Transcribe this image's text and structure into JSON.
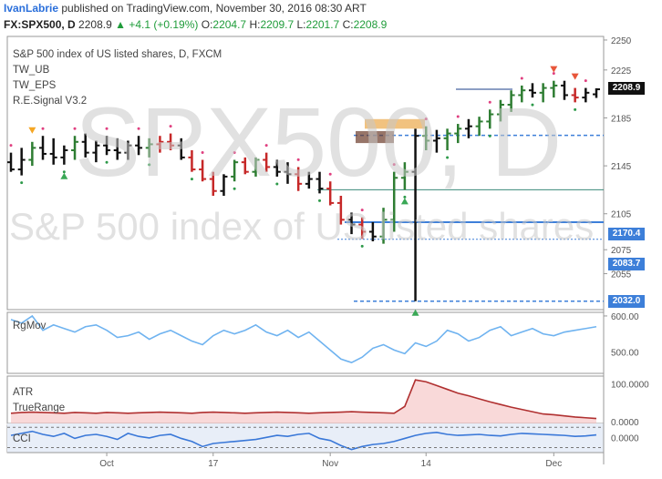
{
  "header": {
    "author": "IvanLabrie",
    "published": "published on TradingView.com, November 30, 2016 08:30 ART",
    "symbol": "FX:SPX500, D",
    "last": "2208.9",
    "change": "+4.1 (+0.19%)",
    "o_label": "O:",
    "o_val": "2204.7",
    "h_label": "H:",
    "h_val": "2209.7",
    "l_label": "L:",
    "l_val": "2201.7",
    "c_label": "C:",
    "c_val": "2208.9"
  },
  "legend": {
    "title": "S&P 500 index of US listed shares, D, FXCM",
    "ind1": "TW_UB",
    "ind2": "TW_EPS",
    "ind3": "R.E.Signal V3.2"
  },
  "watermark": {
    "symbol": "SPX500, D",
    "name": "S&P 500 index of US listed shares"
  },
  "price_tags": {
    "last": "2208.9",
    "l1": "2170.4",
    "l2": "2083.7",
    "l3": "2032.0"
  },
  "colors": {
    "up_bar": "#2e7d32",
    "down_bar": "#c62828",
    "neutral_bar": "#111111",
    "line_blue": "#3d7fd9",
    "rgmov": "#6fb3f0",
    "atr": "#b03030",
    "cci": "#3a78d8"
  },
  "chart_data": [
    {
      "type": "ohlc",
      "title": "S&P 500 index of US listed shares, D, FXCM",
      "y_ticks": [
        2250,
        2225,
        2185,
        2145,
        2105,
        2075,
        2055
      ],
      "x_ticks": [
        "Oct",
        "17",
        "Nov",
        "14",
        "Dec"
      ],
      "ylim": [
        2025,
        2253
      ],
      "bars": [
        [
          2148,
          2156,
          2140,
          2142,
          "n"
        ],
        [
          2142,
          2160,
          2137,
          2150,
          "n"
        ],
        [
          2150,
          2165,
          2145,
          2160,
          "u"
        ],
        [
          2160,
          2170,
          2150,
          2155,
          "n"
        ],
        [
          2155,
          2168,
          2146,
          2152,
          "n"
        ],
        [
          2152,
          2162,
          2146,
          2158,
          "n"
        ],
        [
          2158,
          2170,
          2150,
          2165,
          "u"
        ],
        [
          2165,
          2172,
          2152,
          2156,
          "n"
        ],
        [
          2156,
          2166,
          2148,
          2162,
          "n"
        ],
        [
          2162,
          2170,
          2154,
          2158,
          "n"
        ],
        [
          2158,
          2168,
          2150,
          2156,
          "n"
        ],
        [
          2156,
          2166,
          2150,
          2162,
          "n"
        ],
        [
          2162,
          2170,
          2154,
          2160,
          "n"
        ],
        [
          2160,
          2168,
          2152,
          2163,
          "u"
        ],
        [
          2163,
          2170,
          2156,
          2165,
          "d"
        ],
        [
          2165,
          2172,
          2158,
          2162,
          "d"
        ],
        [
          2162,
          2168,
          2150,
          2152,
          "n"
        ],
        [
          2152,
          2158,
          2140,
          2142,
          "d"
        ],
        [
          2142,
          2150,
          2132,
          2134,
          "d"
        ],
        [
          2134,
          2140,
          2120,
          2124,
          "d"
        ],
        [
          2124,
          2138,
          2120,
          2136,
          "n"
        ],
        [
          2136,
          2150,
          2132,
          2148,
          "u"
        ],
        [
          2148,
          2152,
          2138,
          2140,
          "d"
        ],
        [
          2140,
          2152,
          2136,
          2150,
          "u"
        ],
        [
          2150,
          2156,
          2140,
          2144,
          "d"
        ],
        [
          2144,
          2150,
          2136,
          2140,
          "n"
        ],
        [
          2140,
          2148,
          2130,
          2138,
          "n"
        ],
        [
          2138,
          2144,
          2124,
          2130,
          "d"
        ],
        [
          2130,
          2140,
          2126,
          2134,
          "n"
        ],
        [
          2134,
          2140,
          2122,
          2126,
          "n"
        ],
        [
          2126,
          2132,
          2112,
          2114,
          "d"
        ],
        [
          2114,
          2120,
          2096,
          2100,
          "d"
        ],
        [
          2100,
          2106,
          2088,
          2096,
          "n"
        ],
        [
          2096,
          2102,
          2084,
          2090,
          "d"
        ],
        [
          2090,
          2098,
          2082,
          2086,
          "n"
        ],
        [
          2086,
          2110,
          2080,
          2100,
          "u"
        ],
        [
          2100,
          2140,
          2090,
          2135,
          "u"
        ],
        [
          2135,
          2148,
          2125,
          2140,
          "u"
        ],
        [
          2140,
          2176,
          2032,
          2170,
          "n"
        ],
        [
          2170,
          2178,
          2158,
          2166,
          "u"
        ],
        [
          2166,
          2175,
          2156,
          2168,
          "n"
        ],
        [
          2168,
          2176,
          2158,
          2172,
          "u"
        ],
        [
          2172,
          2180,
          2164,
          2176,
          "u"
        ],
        [
          2176,
          2184,
          2168,
          2178,
          "n"
        ],
        [
          2178,
          2186,
          2170,
          2182,
          "u"
        ],
        [
          2182,
          2192,
          2176,
          2188,
          "u"
        ],
        [
          2188,
          2200,
          2182,
          2196,
          "u"
        ],
        [
          2196,
          2208,
          2190,
          2204,
          "u"
        ],
        [
          2204,
          2212,
          2198,
          2208,
          "u"
        ],
        [
          2208,
          2214,
          2202,
          2206,
          "n"
        ],
        [
          2206,
          2214,
          2198,
          2210,
          "u"
        ],
        [
          2210,
          2216,
          2202,
          2212,
          "u"
        ],
        [
          2212,
          2216,
          2200,
          2204,
          "n"
        ],
        [
          2204,
          2210,
          2198,
          2202,
          "d"
        ],
        [
          2202,
          2210,
          2198,
          2206,
          "n"
        ],
        [
          2204.7,
          2209.7,
          2201.7,
          2208.9,
          "n"
        ]
      ],
      "levels": [
        2170.4,
        2083.7,
        2032.0,
        2208.9
      ]
    },
    {
      "type": "line",
      "title": "RgMov",
      "y_ticks": [
        "600.00",
        "500.00"
      ],
      "ylim": [
        440,
        610
      ],
      "values": [
        590,
        580,
        600,
        560,
        575,
        565,
        555,
        570,
        575,
        560,
        540,
        545,
        555,
        535,
        550,
        560,
        545,
        530,
        520,
        545,
        560,
        550,
        560,
        575,
        555,
        545,
        560,
        540,
        555,
        530,
        505,
        480,
        470,
        485,
        510,
        520,
        505,
        495,
        525,
        515,
        530,
        560,
        550,
        530,
        540,
        560,
        570,
        545,
        555,
        565,
        550,
        545,
        555,
        560,
        565,
        570
      ]
    },
    {
      "type": "area",
      "title": "ATR",
      "series2": "TrueRange",
      "y_ticks": [
        "100.0000",
        "0.0000"
      ],
      "ylim": [
        -5,
        120
      ],
      "values": [
        22,
        24,
        25,
        24,
        23,
        22,
        24,
        23,
        22,
        24,
        23,
        22,
        23,
        24,
        25,
        24,
        23,
        22,
        24,
        25,
        24,
        23,
        22,
        23,
        24,
        25,
        24,
        23,
        22,
        23,
        24,
        25,
        26,
        25,
        24,
        23,
        22,
        40,
        110,
        105,
        95,
        85,
        75,
        68,
        60,
        52,
        45,
        38,
        32,
        26,
        20,
        18,
        15,
        12,
        10,
        8
      ]
    },
    {
      "type": "line",
      "title": "CCI",
      "y_ticks": [
        "0.0000"
      ],
      "ylim": [
        -150,
        120
      ],
      "values": [
        20,
        40,
        60,
        30,
        10,
        40,
        -10,
        20,
        30,
        10,
        -20,
        40,
        10,
        -5,
        20,
        30,
        -10,
        -40,
        -90,
        -60,
        -50,
        -40,
        -30,
        -20,
        0,
        20,
        10,
        30,
        40,
        -10,
        -30,
        -80,
        -120,
        -90,
        -70,
        -60,
        -40,
        -10,
        20,
        40,
        50,
        30,
        20,
        25,
        30,
        20,
        15,
        30,
        40,
        35,
        30,
        25,
        20,
        10,
        15,
        25
      ]
    }
  ]
}
